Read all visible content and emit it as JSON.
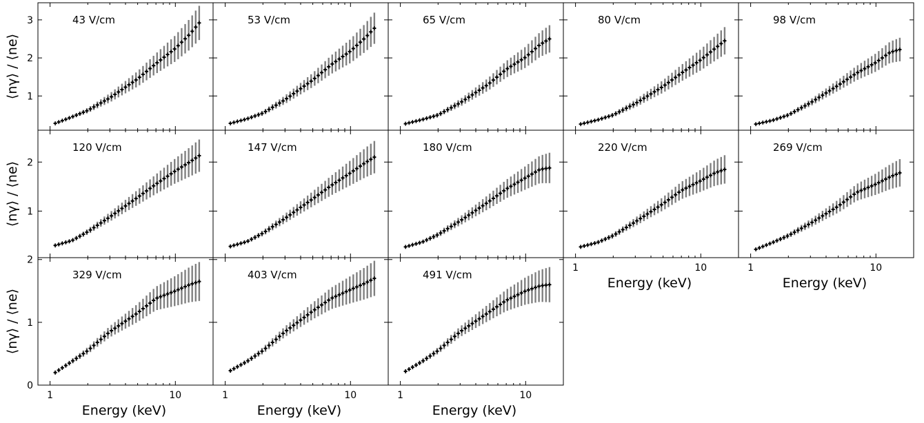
{
  "chart_data": {
    "type": "errorbar",
    "x_scale": "log",
    "x_axis_label": "Energy (keV)",
    "y_axis_label": "⟨nγ⟩ / ⟨ne⟩",
    "x_ticks": [
      {
        "value": 1,
        "label": "1"
      },
      {
        "value": 10,
        "label": "10"
      }
    ],
    "grid": false,
    "row_y_limits": [
      [
        0.1,
        3.45
      ],
      [
        0.05,
        2.65
      ],
      [
        0.0,
        2.03
      ]
    ],
    "row_y_ticks": [
      [
        {
          "value": 1,
          "label": "1"
        },
        {
          "value": 2,
          "label": "2"
        },
        {
          "value": 3,
          "label": "3"
        }
      ],
      [
        {
          "value": 1,
          "label": "1"
        },
        {
          "value": 2,
          "label": "2"
        }
      ],
      [
        {
          "value": 0,
          "label": "0"
        },
        {
          "value": 1,
          "label": "1"
        },
        {
          "value": 2,
          "label": "2"
        }
      ]
    ],
    "x_range": [
      0.8,
      20.0
    ],
    "series_style": {
      "systematic_color": "#808080",
      "statistical_color": "#000000"
    },
    "panels": [
      {
        "label": "43 V/cm",
        "row": 0,
        "col": 0,
        "y_at_e": [
          [
            1.1,
            0.28
          ],
          [
            1.5,
            0.45
          ],
          [
            2.0,
            0.62
          ],
          [
            3.0,
            0.95
          ],
          [
            5.0,
            1.45
          ],
          [
            7.0,
            1.85
          ],
          [
            10.0,
            2.25
          ],
          [
            13.0,
            2.62
          ],
          [
            15.5,
            2.92
          ]
        ],
        "sys_err_end": 0.42
      },
      {
        "label": "53 V/cm",
        "row": 0,
        "col": 1,
        "y_at_e": [
          [
            1.1,
            0.28
          ],
          [
            1.5,
            0.4
          ],
          [
            2.0,
            0.55
          ],
          [
            3.0,
            0.9
          ],
          [
            5.0,
            1.42
          ],
          [
            7.0,
            1.82
          ],
          [
            10.0,
            2.18
          ],
          [
            13.0,
            2.52
          ],
          [
            15.5,
            2.78
          ]
        ],
        "sys_err_end": 0.38
      },
      {
        "label": "65 V/cm",
        "row": 0,
        "col": 2,
        "y_at_e": [
          [
            1.1,
            0.27
          ],
          [
            1.5,
            0.38
          ],
          [
            2.0,
            0.5
          ],
          [
            3.0,
            0.82
          ],
          [
            5.0,
            1.3
          ],
          [
            7.0,
            1.7
          ],
          [
            10.0,
            2.02
          ],
          [
            13.0,
            2.35
          ],
          [
            15.5,
            2.5
          ]
        ],
        "sys_err_end": 0.33
      },
      {
        "label": "80 V/cm",
        "row": 0,
        "col": 3,
        "y_at_e": [
          [
            1.1,
            0.26
          ],
          [
            1.5,
            0.37
          ],
          [
            2.0,
            0.5
          ],
          [
            3.0,
            0.8
          ],
          [
            5.0,
            1.25
          ],
          [
            7.0,
            1.6
          ],
          [
            10.0,
            1.95
          ],
          [
            13.0,
            2.25
          ],
          [
            15.5,
            2.45
          ]
        ],
        "sys_err_end": 0.33
      },
      {
        "label": "98 V/cm",
        "row": 0,
        "col": 4,
        "y_at_e": [
          [
            1.1,
            0.26
          ],
          [
            1.5,
            0.36
          ],
          [
            2.0,
            0.5
          ],
          [
            3.0,
            0.82
          ],
          [
            5.0,
            1.28
          ],
          [
            7.0,
            1.6
          ],
          [
            10.0,
            1.88
          ],
          [
            13.0,
            2.15
          ],
          [
            15.5,
            2.22
          ]
        ],
        "sys_err_end": 0.28
      },
      {
        "label": "120 V/cm",
        "row": 1,
        "col": 0,
        "y_at_e": [
          [
            1.1,
            0.3
          ],
          [
            1.5,
            0.4
          ],
          [
            2.0,
            0.58
          ],
          [
            3.0,
            0.88
          ],
          [
            5.0,
            1.28
          ],
          [
            7.0,
            1.55
          ],
          [
            10.0,
            1.82
          ],
          [
            13.0,
            2.0
          ],
          [
            15.5,
            2.13
          ]
        ],
        "sys_err_end": 0.3
      },
      {
        "label": "147 V/cm",
        "row": 1,
        "col": 1,
        "y_at_e": [
          [
            1.1,
            0.28
          ],
          [
            1.5,
            0.38
          ],
          [
            2.0,
            0.55
          ],
          [
            3.0,
            0.85
          ],
          [
            5.0,
            1.25
          ],
          [
            7.0,
            1.52
          ],
          [
            10.0,
            1.78
          ],
          [
            13.0,
            1.98
          ],
          [
            15.5,
            2.1
          ]
        ],
        "sys_err_end": 0.3
      },
      {
        "label": "180 V/cm",
        "row": 1,
        "col": 2,
        "y_at_e": [
          [
            1.1,
            0.27
          ],
          [
            1.5,
            0.37
          ],
          [
            2.0,
            0.52
          ],
          [
            3.0,
            0.8
          ],
          [
            5.0,
            1.18
          ],
          [
            7.0,
            1.45
          ],
          [
            10.0,
            1.68
          ],
          [
            13.0,
            1.85
          ],
          [
            15.5,
            1.88
          ]
        ],
        "sys_err_end": 0.28
      },
      {
        "label": "220 V/cm",
        "row": 1,
        "col": 3,
        "y_at_e": [
          [
            1.1,
            0.27
          ],
          [
            1.5,
            0.36
          ],
          [
            2.0,
            0.5
          ],
          [
            3.0,
            0.78
          ],
          [
            5.0,
            1.15
          ],
          [
            7.0,
            1.42
          ],
          [
            10.0,
            1.62
          ],
          [
            13.0,
            1.78
          ],
          [
            15.5,
            1.85
          ]
        ],
        "sys_err_end": 0.26
      },
      {
        "label": "269 V/cm",
        "row": 1,
        "col": 4,
        "y_at_e": [
          [
            1.1,
            0.22
          ],
          [
            1.5,
            0.36
          ],
          [
            2.0,
            0.5
          ],
          [
            3.0,
            0.75
          ],
          [
            5.0,
            1.1
          ],
          [
            7.0,
            1.38
          ],
          [
            10.0,
            1.55
          ],
          [
            13.0,
            1.7
          ],
          [
            15.5,
            1.78
          ]
        ],
        "sys_err_end": 0.25
      },
      {
        "label": "329 V/cm",
        "row": 2,
        "col": 0,
        "y_at_e": [
          [
            1.1,
            0.2
          ],
          [
            1.5,
            0.38
          ],
          [
            2.0,
            0.55
          ],
          [
            3.0,
            0.85
          ],
          [
            5.0,
            1.15
          ],
          [
            7.0,
            1.38
          ],
          [
            10.0,
            1.5
          ],
          [
            13.0,
            1.6
          ],
          [
            15.5,
            1.65
          ]
        ],
        "sys_err_end": 0.28
      },
      {
        "label": "403 V/cm",
        "row": 2,
        "col": 1,
        "y_at_e": [
          [
            1.1,
            0.23
          ],
          [
            1.5,
            0.38
          ],
          [
            2.0,
            0.55
          ],
          [
            3.0,
            0.85
          ],
          [
            5.0,
            1.18
          ],
          [
            7.0,
            1.38
          ],
          [
            10.0,
            1.52
          ],
          [
            13.0,
            1.62
          ],
          [
            15.5,
            1.7
          ]
        ],
        "sys_err_end": 0.25
      },
      {
        "label": "491 V/cm",
        "row": 2,
        "col": 2,
        "y_at_e": [
          [
            1.1,
            0.22
          ],
          [
            1.5,
            0.38
          ],
          [
            2.0,
            0.55
          ],
          [
            3.0,
            0.85
          ],
          [
            5.0,
            1.15
          ],
          [
            7.0,
            1.35
          ],
          [
            10.0,
            1.5
          ],
          [
            13.0,
            1.58
          ],
          [
            15.5,
            1.6
          ]
        ],
        "sys_err_end": 0.25
      }
    ]
  }
}
